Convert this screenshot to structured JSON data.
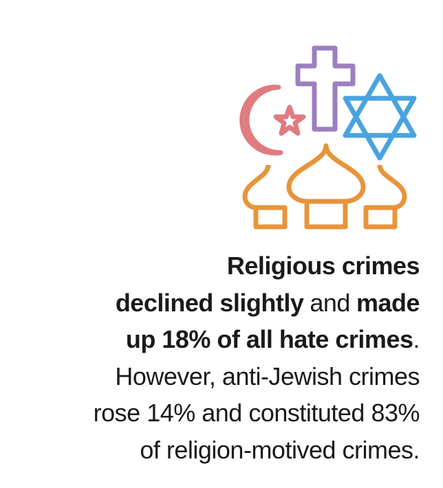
{
  "text": {
    "lines": [
      [
        {
          "text": "Religious crimes",
          "bold": true
        }
      ],
      [
        {
          "text": "declined slightly",
          "bold": true
        },
        {
          "text": "and",
          "bold": false
        },
        {
          "text": "made",
          "bold": true
        }
      ],
      [
        {
          "text": "up 18% of all hate crimes",
          "bold": true
        },
        {
          "text": ".",
          "bold": false
        }
      ],
      [
        {
          "text": "However, anti-Jewish crimes",
          "bold": false
        }
      ],
      [
        {
          "text": "rose 14% and constituted 83%",
          "bold": false
        }
      ],
      [
        {
          "text": "of religion-motived crimes.",
          "bold": false
        }
      ]
    ]
  }
}
